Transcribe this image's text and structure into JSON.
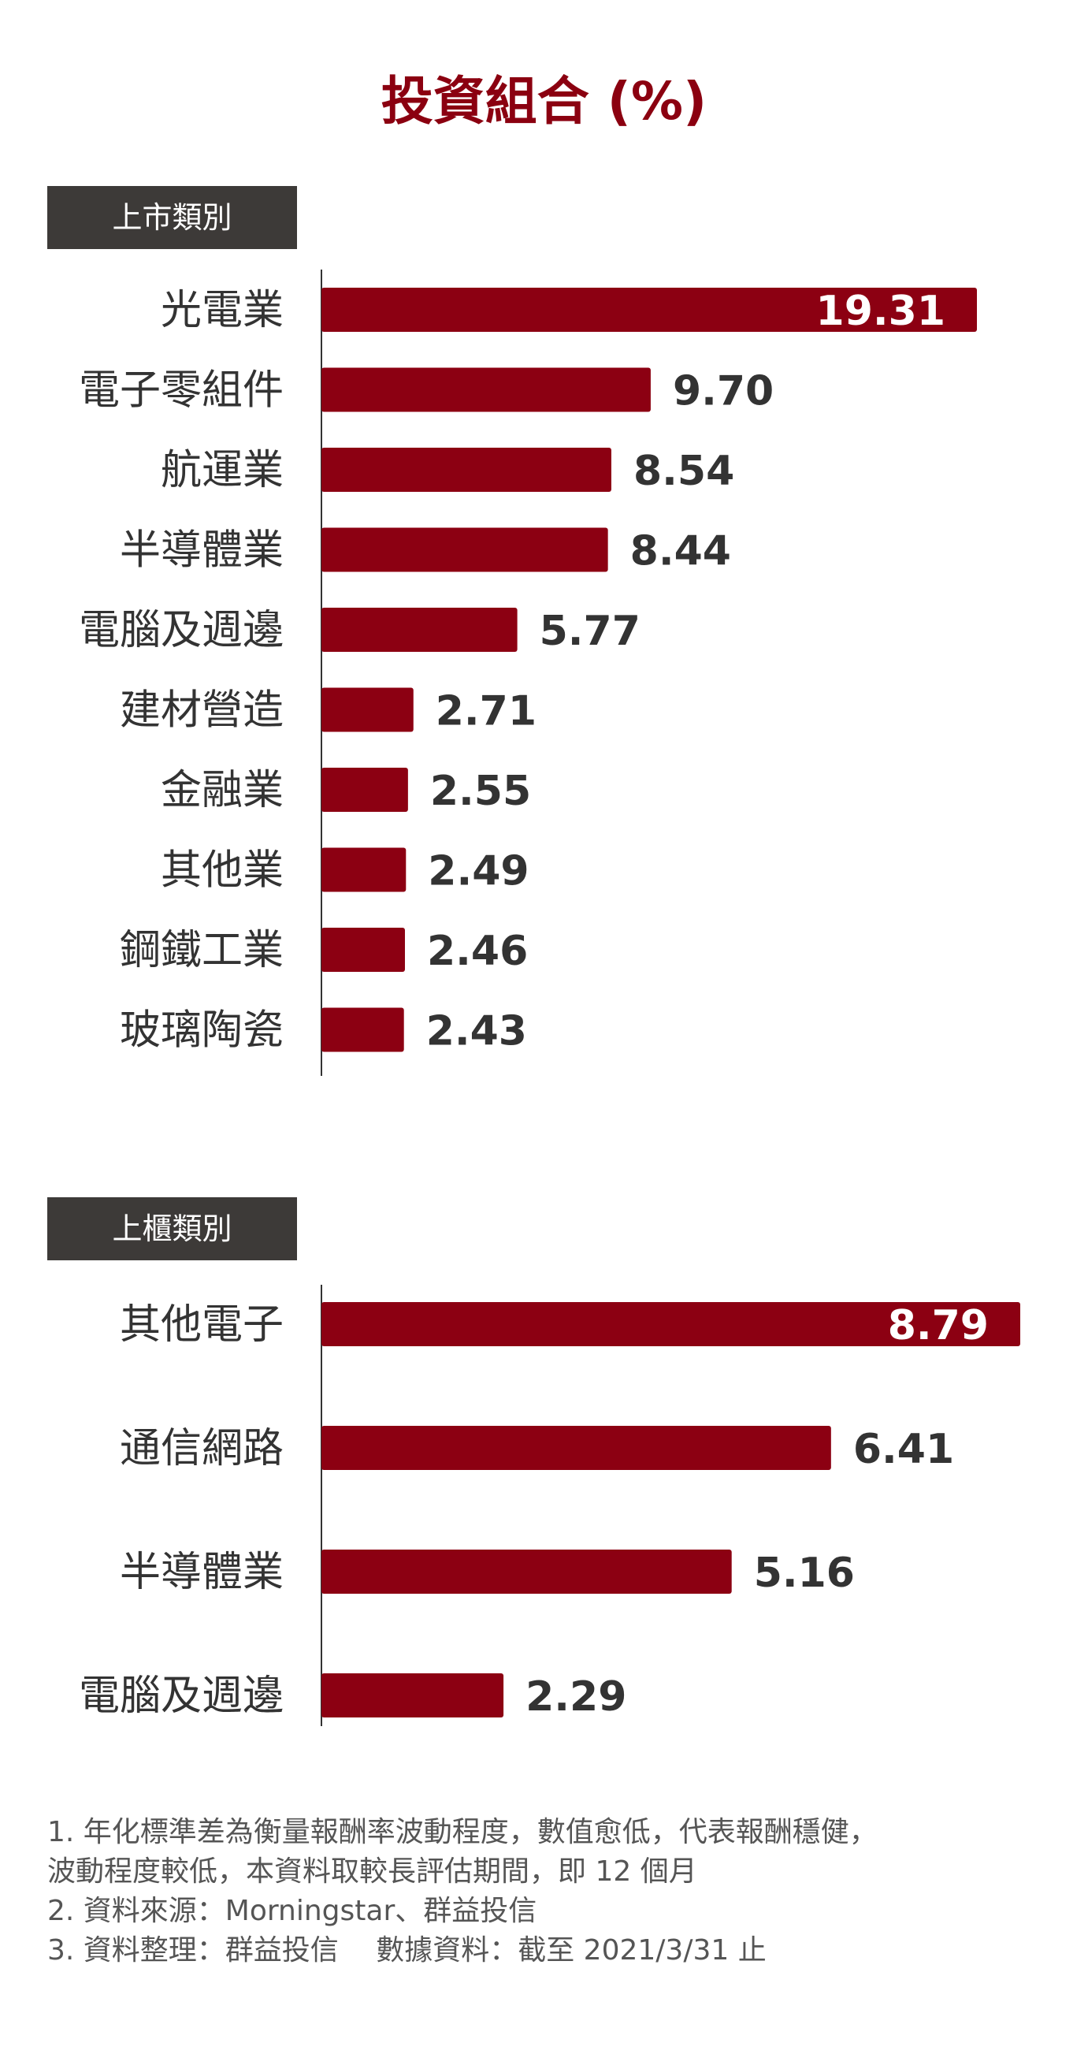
{
  "title": "投資組合 (%)",
  "colors": {
    "title": "#8b0010",
    "bar": "#8c0012",
    "tag_bg": "#3d3a38"
  },
  "chart_data": [
    {
      "type": "bar",
      "orientation": "horizontal",
      "title": "上市類別",
      "xlim": [
        0,
        20
      ],
      "categories": [
        "光電業",
        "電子零組件",
        "航運業",
        "半導體業",
        "電腦及週邊",
        "建材營造",
        "金融業",
        "其他業",
        "鋼鐵工業",
        "玻璃陶瓷"
      ],
      "values": [
        19.31,
        9.7,
        8.54,
        8.44,
        5.77,
        2.71,
        2.55,
        2.49,
        2.46,
        2.43
      ],
      "labels": [
        "19.31",
        "9.70",
        "8.54",
        "8.44",
        "5.77",
        "2.71",
        "2.55",
        "2.49",
        "2.46",
        "2.43"
      ],
      "grid": false,
      "legend": "none"
    },
    {
      "type": "bar",
      "orientation": "horizontal",
      "title": "上櫃類別",
      "xlim": [
        0,
        9
      ],
      "categories": [
        "其他電子",
        "通信網路",
        "半導體業",
        "電腦及週邊"
      ],
      "values": [
        8.79,
        6.41,
        5.16,
        2.29
      ],
      "labels": [
        "8.79",
        "6.41",
        "5.16",
        "2.29"
      ],
      "grid": false,
      "legend": "none"
    }
  ],
  "notes": [
    "1. 年化標準差為衡量報酬率波動程度，數值愈低，代表報酬穩健，",
    "波動程度較低，本資料取較長評估期間，即 12 個月",
    "2. 資料來源：Morningstar、群益投信",
    "3. 資料整理：群益投信　 數據資料：截至 2021/3/31 止"
  ]
}
